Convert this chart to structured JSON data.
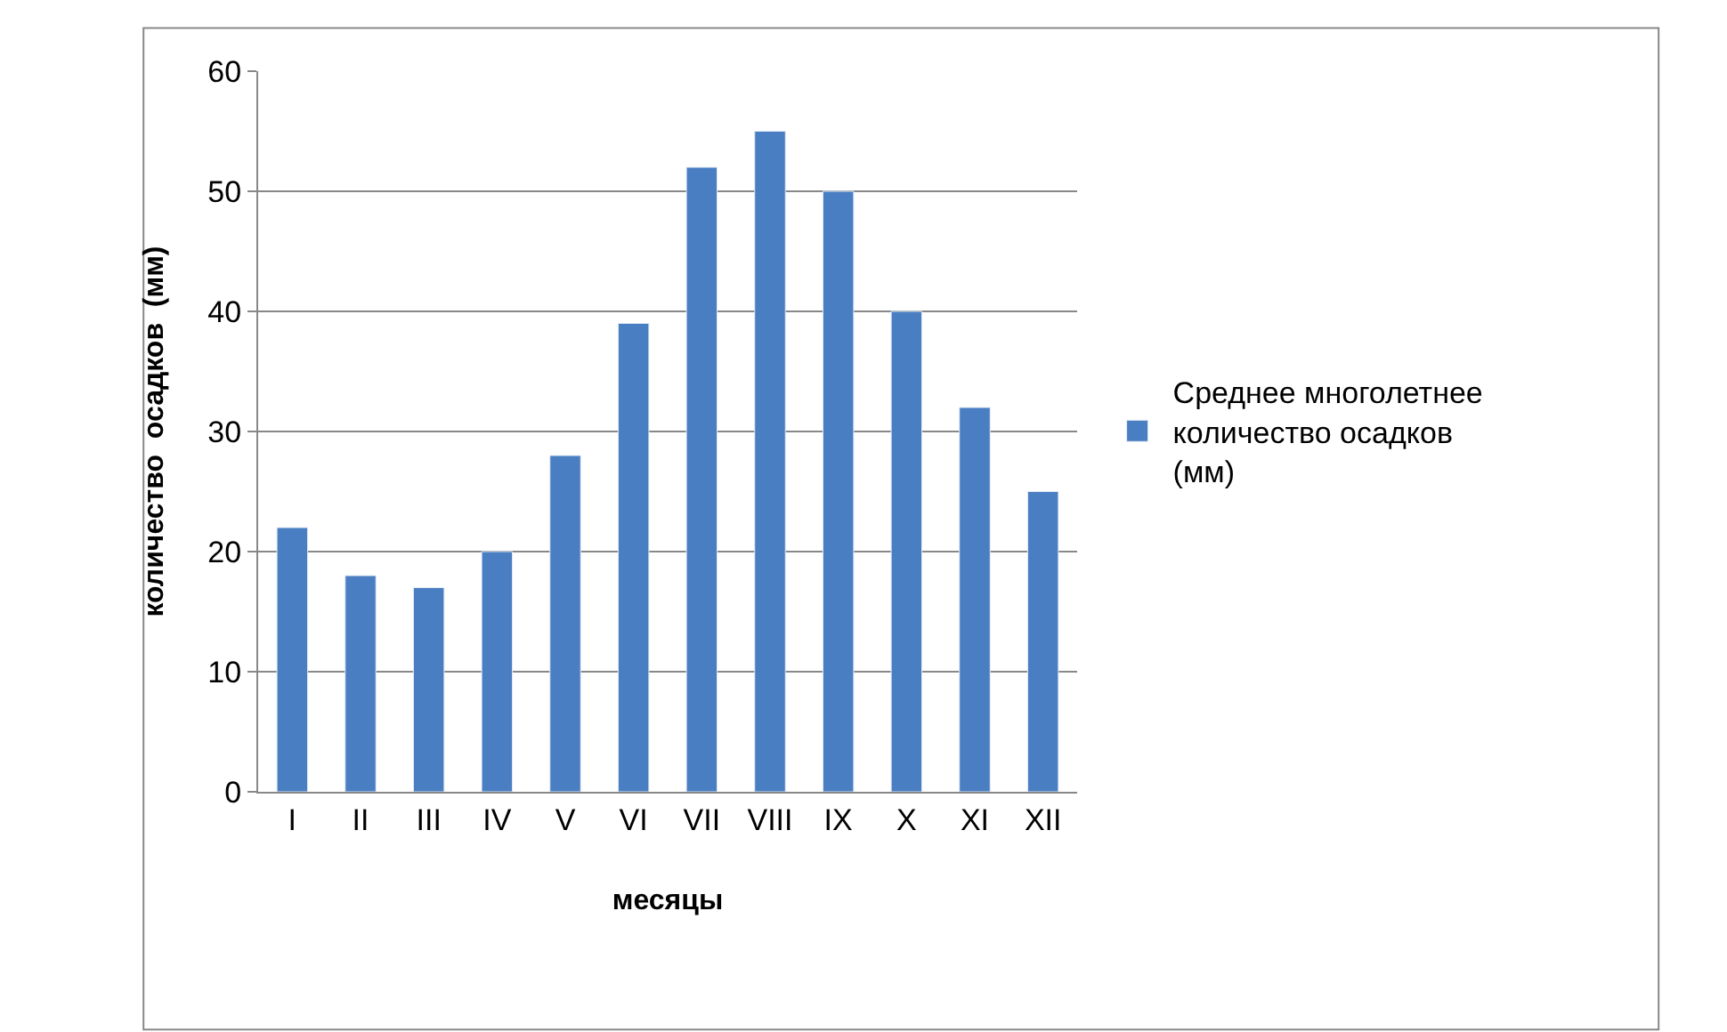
{
  "chart_data": {
    "type": "bar",
    "xlabel": "месяцы",
    "ylabel": "количество  осадков  (мм)",
    "categories": [
      "I",
      "II",
      "III",
      "IV",
      "V",
      "VI",
      "VII",
      "VIII",
      "IX",
      "X",
      "XI",
      "XII"
    ],
    "series": [
      {
        "name": "Среднее многолетнее количество осадков (мм)",
        "color": "#4a7ec2",
        "values": [
          22,
          18,
          17,
          20,
          28,
          39,
          52,
          55,
          50,
          40,
          32,
          25
        ]
      }
    ],
    "ylim": [
      0,
      60
    ],
    "yticks": [
      0,
      10,
      20,
      30,
      40,
      50,
      60
    ],
    "grid": "y",
    "legend": "right"
  }
}
